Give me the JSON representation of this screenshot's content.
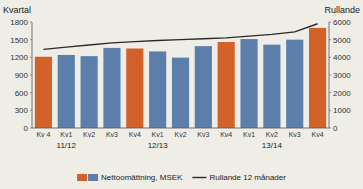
{
  "chart_data": {
    "type": "bar",
    "y_label": "Kvartal",
    "y2_label": "Rullande",
    "categories": [
      "Kv 4",
      "Kv1",
      "Kv2",
      "Kv3",
      "Kv4",
      "Kv1",
      "Kv2",
      "Kv3",
      "Kv4",
      "Kv1",
      "Kv2",
      "Kv3",
      "Kv4"
    ],
    "annotations": [
      {
        "text": "11/12",
        "x": 1
      },
      {
        "text": "12/13",
        "x": 5
      },
      {
        "text": "13/14",
        "x": 10
      }
    ],
    "series": [
      {
        "name": "Nettoomättning, MSEK",
        "type": "bar",
        "colors": [
          "#d2622a",
          "#5b7faa",
          "#5b7faa",
          "#5b7faa",
          "#d2622a",
          "#5b7faa",
          "#5b7faa",
          "#5b7faa",
          "#d2622a",
          "#5b7faa",
          "#5b7faa",
          "#5b7faa",
          "#d2622a"
        ],
        "values": [
          1210,
          1240,
          1220,
          1360,
          1350,
          1300,
          1195,
          1390,
          1460,
          1510,
          1415,
          1500,
          1700
        ]
      },
      {
        "name": "Rullande 12 månader",
        "type": "line",
        "color": "#2b2b2b",
        "axis": "y2",
        "values": [
          4450,
          4580,
          4700,
          4820,
          4890,
          4950,
          5000,
          5050,
          5100,
          5200,
          5300,
          5440,
          5900
        ]
      }
    ],
    "ylim": [
      0,
      1800
    ],
    "yticks": [
      0,
      300,
      600,
      900,
      1200,
      1500,
      1800
    ],
    "y2lim": [
      0,
      6000
    ],
    "y2ticks": [
      0,
      1000,
      2000,
      3000,
      4000,
      5000,
      6000
    ],
    "grid": false,
    "legend": "bottom"
  }
}
